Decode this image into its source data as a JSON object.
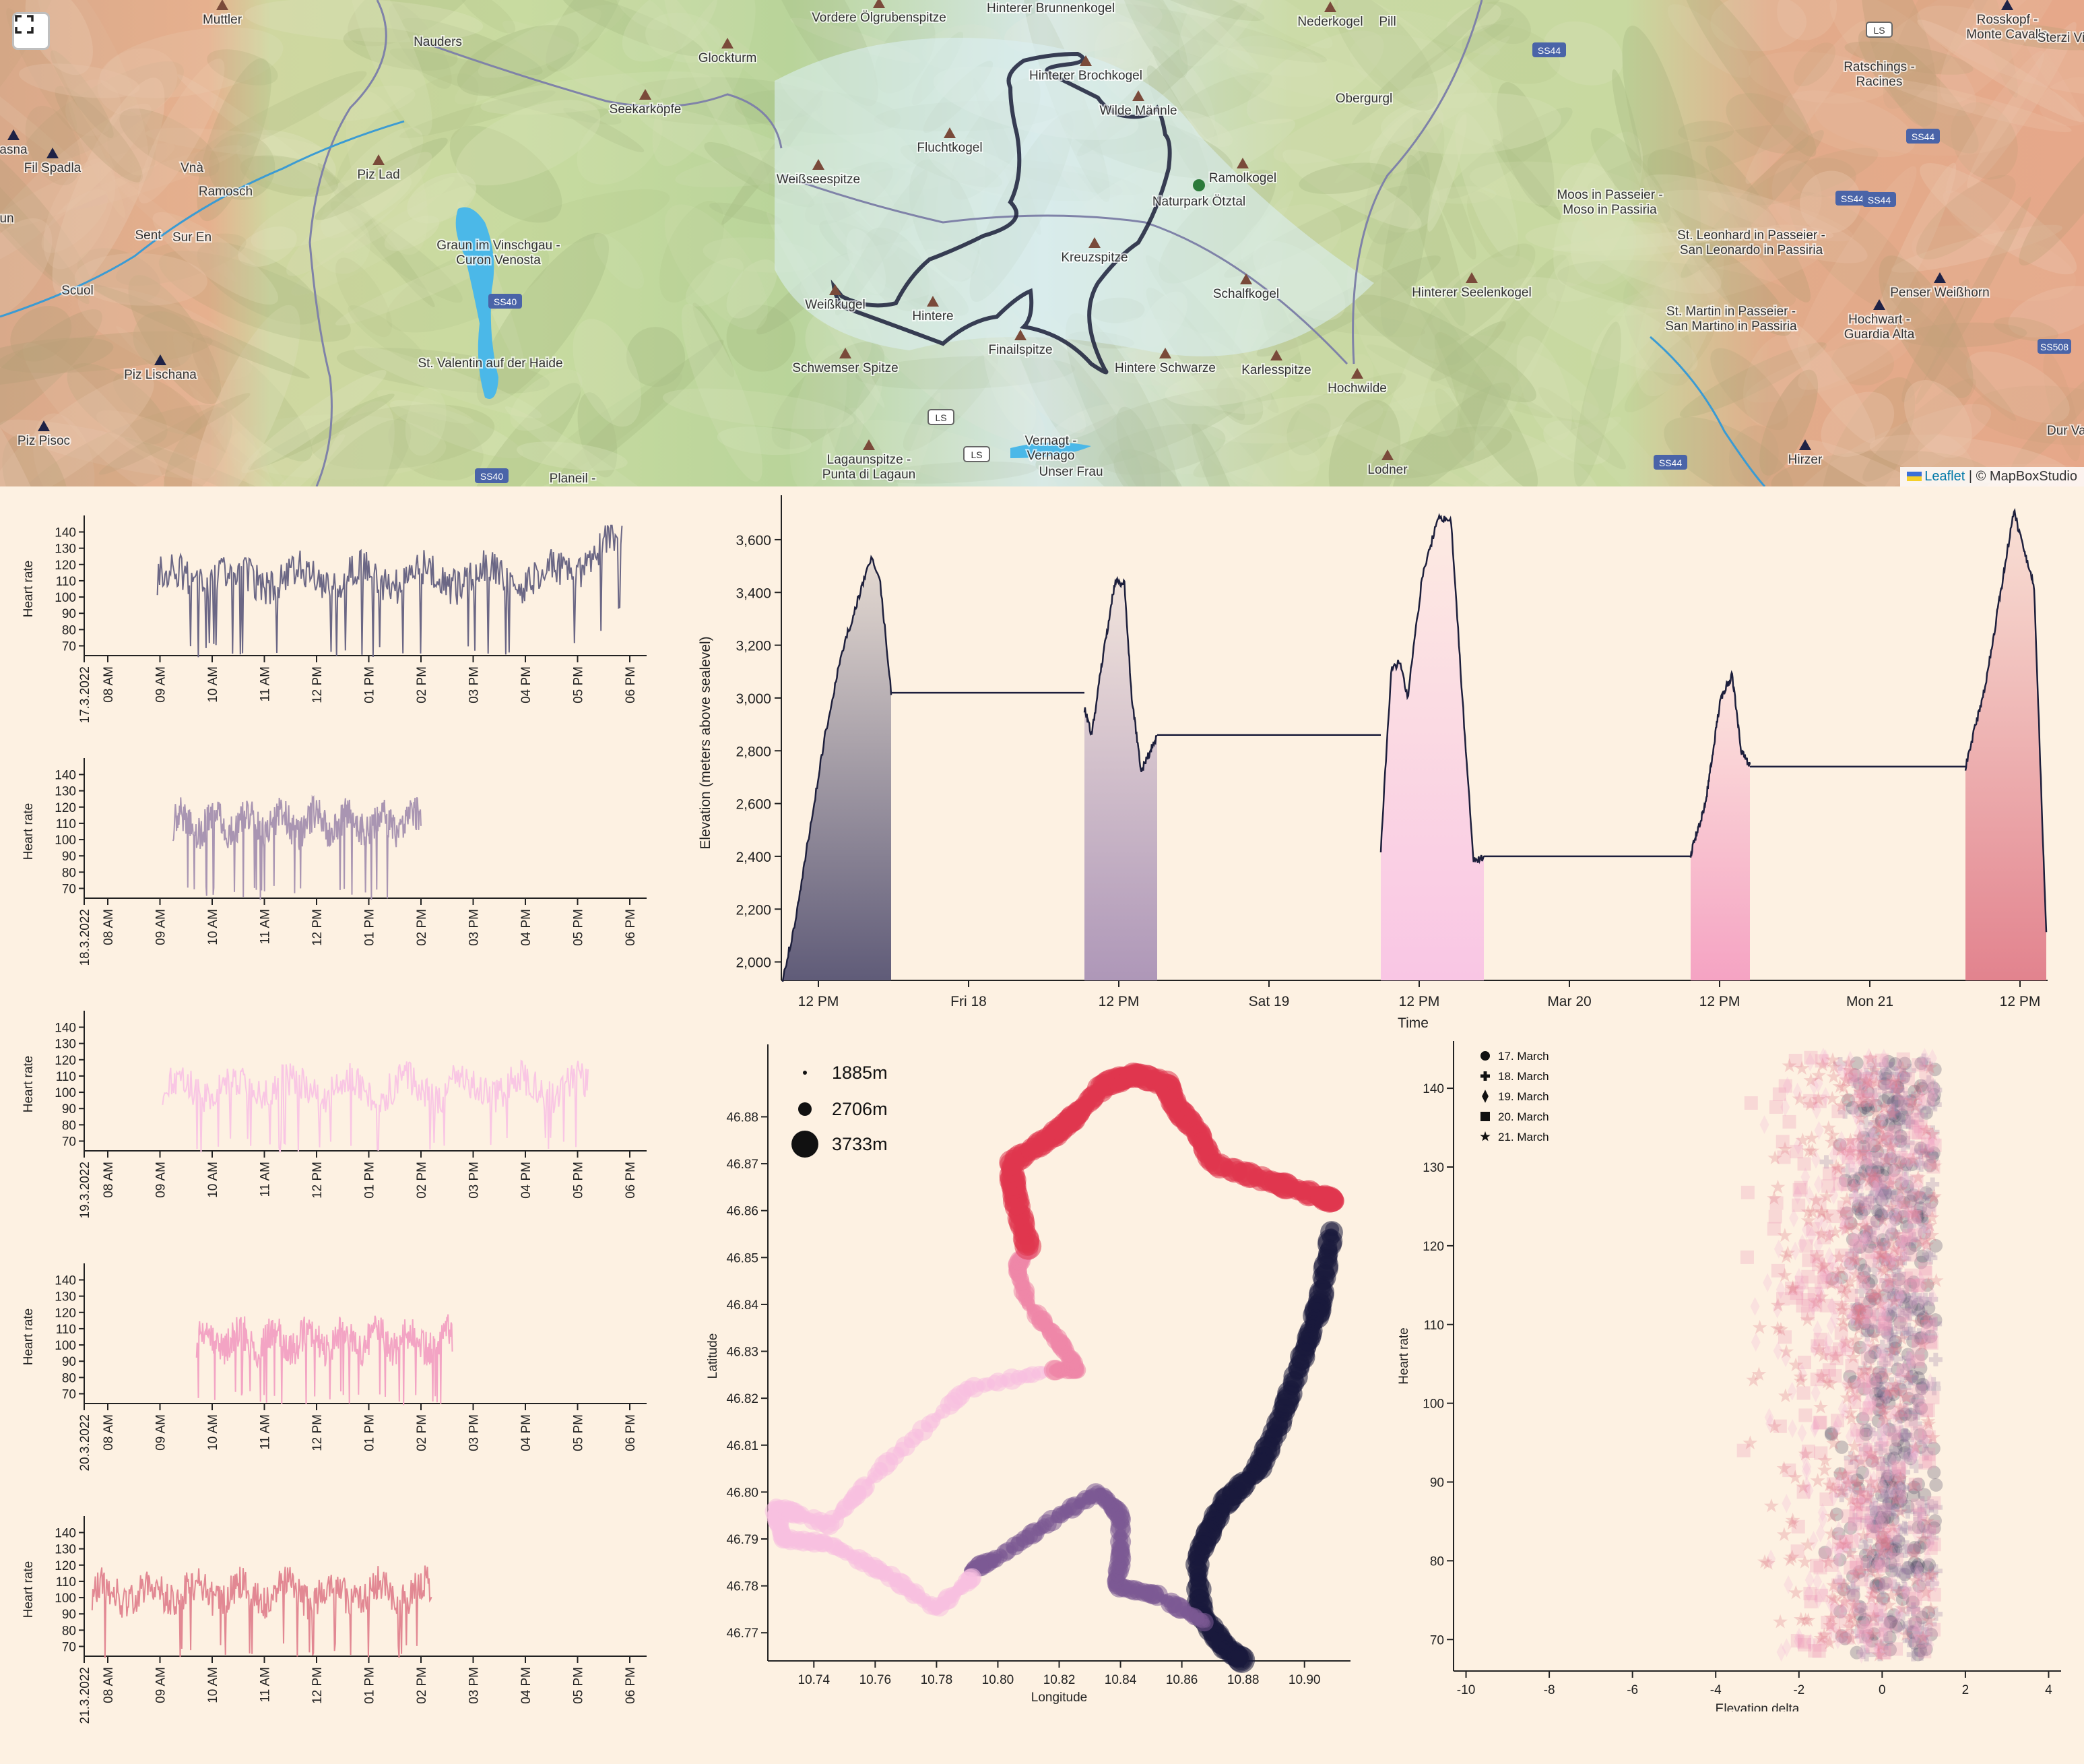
{
  "map": {
    "fullscreen_icon": "fullscreen-icon",
    "attribution": {
      "leaflet": "Leaflet",
      "separator": " | © ",
      "provider": "MapBoxStudio"
    },
    "labels": [
      {
        "name": "Muttler",
        "kind": "peak"
      },
      {
        "name": "Nauders",
        "kind": "town"
      },
      {
        "name": "Glockturm",
        "kind": "peak"
      },
      {
        "name": "Vordere Ölgrubenspitze",
        "kind": "peak"
      },
      {
        "name": "Hinterer Brunnenkogel",
        "kind": "peak"
      },
      {
        "name": "Nederkogel",
        "kind": "peak"
      },
      {
        "name": "Pill",
        "kind": "town"
      },
      {
        "name": "Rosskopf - Monte Cavallo",
        "kind": "peak"
      },
      {
        "name": "Sterzi Vipit",
        "kind": "town"
      },
      {
        "name": "Ratschings - Racines",
        "kind": "town"
      },
      {
        "name": "asna",
        "kind": "peak"
      },
      {
        "name": "Fil Spadla",
        "kind": "peak"
      },
      {
        "name": "Vnà",
        "kind": "town"
      },
      {
        "name": "Ramosch",
        "kind": "town"
      },
      {
        "name": "Piz Lad",
        "kind": "peak"
      },
      {
        "name": "Seekarköpfe",
        "kind": "peak"
      },
      {
        "name": "Hinterer Brochkogel",
        "kind": "peak"
      },
      {
        "name": "Wilde Männle",
        "kind": "peak"
      },
      {
        "name": "Obergurgl",
        "kind": "town"
      },
      {
        "name": "Fluchtkogel",
        "kind": "peak"
      },
      {
        "name": "Weißseespitze",
        "kind": "peak"
      },
      {
        "name": "Ramolkogel",
        "kind": "peak"
      },
      {
        "name": "Naturpark Ötztal",
        "kind": "park"
      },
      {
        "name": "Moos in Passeier - Moso in Passiria",
        "kind": "town"
      },
      {
        "name": "un",
        "kind": "town"
      },
      {
        "name": "Sent",
        "kind": "town"
      },
      {
        "name": "Sur En",
        "kind": "town"
      },
      {
        "name": "Graun im Vinschgau - Curon Venosta",
        "kind": "town"
      },
      {
        "name": "Kreuzspitze",
        "kind": "peak"
      },
      {
        "name": "St. Leonhard in Passeier - San Leonardo in Passiria",
        "kind": "town"
      },
      {
        "name": "Scuol",
        "kind": "town"
      },
      {
        "name": "Weißkugel",
        "kind": "peak"
      },
      {
        "name": "Hintere",
        "kind": "peak"
      },
      {
        "name": "Schalfkogel",
        "kind": "peak"
      },
      {
        "name": "Hinterer Seelenkogel",
        "kind": "peak"
      },
      {
        "name": "Penser Weißhorn",
        "kind": "peak"
      },
      {
        "name": "St. Martin in Passeier - San Martino in Passiria",
        "kind": "town"
      },
      {
        "name": "Hochwart - Guardia Alta",
        "kind": "peak"
      },
      {
        "name": "St. Valentin auf der Haide",
        "kind": "town"
      },
      {
        "name": "Finailspitze",
        "kind": "peak"
      },
      {
        "name": "Hintere Schwarze",
        "kind": "peak"
      },
      {
        "name": "Karlesspitze",
        "kind": "peak"
      },
      {
        "name": "Piz Lischana",
        "kind": "peak"
      },
      {
        "name": "Schwemser Spitze",
        "kind": "peak"
      },
      {
        "name": "Hochwilde",
        "kind": "peak"
      },
      {
        "name": "Lagaunspitze - Punta di Lagaun",
        "kind": "peak"
      },
      {
        "name": "Vernagt - Vernago",
        "kind": "town"
      },
      {
        "name": "Piz Pisoc",
        "kind": "peak"
      },
      {
        "name": "Unser Frau",
        "kind": "town"
      },
      {
        "name": "Lodner",
        "kind": "peak"
      },
      {
        "name": "Hirzer",
        "kind": "peak"
      },
      {
        "name": "Planeil - Planol",
        "kind": "town"
      },
      {
        "name": "Dur Val",
        "kind": "town"
      }
    ],
    "roads": [
      "LS",
      "SS44",
      "SS44",
      "SS44",
      "SS40",
      "SS44",
      "SS508",
      "LS",
      "LS",
      "SS40",
      "SS44"
    ]
  },
  "heart_panels": [
    {
      "date": "17.3.2022",
      "color": "#6b6785"
    },
    {
      "date": "18.3.2022",
      "color": "#a995b2"
    },
    {
      "date": "19.3.2022",
      "color": "#f9c6e4"
    },
    {
      "date": "20.3.2022",
      "color": "#f3a4c4"
    },
    {
      "date": "21.3.2022",
      "color": "#e28893"
    }
  ],
  "heart_axis": {
    "ylabel": "Heart rate",
    "yticks": [
      "140",
      "130",
      "120",
      "110",
      "100",
      "90",
      "80",
      "70"
    ],
    "xticks": [
      "08 AM",
      "09 AM",
      "10 AM",
      "11 AM",
      "12 PM",
      "01 PM",
      "02 PM",
      "03 PM",
      "04 PM",
      "05 PM",
      "06 PM"
    ]
  },
  "chart_data": [
    {
      "type": "area",
      "name": "elevation-profile",
      "xlabel": "Time",
      "ylabel": "Elevation (meters above sealevel)",
      "yticks": [
        "3,600",
        "3,400",
        "3,200",
        "3,000",
        "2,800",
        "2,600",
        "2,400",
        "2,200",
        "2,000"
      ],
      "xticks": [
        "12 PM",
        "Fri 18",
        "12 PM",
        "Sat 19",
        "12 PM",
        "Mar 20",
        "12 PM",
        "Mon 21",
        "12 PM"
      ],
      "ylim": [
        1930,
        3730
      ],
      "days": [
        {
          "color": "#5f5b78",
          "profile": [
            [
              0,
              1940
            ],
            [
              0.1,
              2120
            ],
            [
              0.25,
              2500
            ],
            [
              0.4,
              2880
            ],
            [
              0.55,
              3180
            ],
            [
              0.7,
              3380
            ],
            [
              0.82,
              3540
            ],
            [
              0.9,
              3440
            ],
            [
              1,
              3020
            ]
          ]
        },
        {
          "color": "#ae97b8",
          "profile": [
            [
              0,
              2960
            ],
            [
              0.1,
              2860
            ],
            [
              0.25,
              3150
            ],
            [
              0.42,
              3440
            ],
            [
              0.55,
              3430
            ],
            [
              0.65,
              3000
            ],
            [
              0.78,
              2720
            ],
            [
              1,
              2860
            ]
          ]
        },
        {
          "color": "#f9c6e4",
          "profile": [
            [
              0,
              2430
            ],
            [
              0.1,
              3100
            ],
            [
              0.18,
              3140
            ],
            [
              0.26,
              3000
            ],
            [
              0.4,
              3450
            ],
            [
              0.55,
              3680
            ],
            [
              0.68,
              3680
            ],
            [
              0.8,
              2950
            ],
            [
              0.9,
              2380
            ],
            [
              1,
              2400
            ]
          ]
        },
        {
          "color": "#f5a3c3",
          "profile": [
            [
              0,
              2410
            ],
            [
              0.25,
              2600
            ],
            [
              0.5,
              2990
            ],
            [
              0.7,
              3090
            ],
            [
              0.85,
              2800
            ],
            [
              1,
              2740
            ]
          ]
        },
        {
          "color": "#e2838e",
          "profile": [
            [
              0,
              2740
            ],
            [
              0.25,
              3050
            ],
            [
              0.45,
              3430
            ],
            [
              0.6,
              3710
            ],
            [
              0.72,
              3560
            ],
            [
              0.85,
              3420
            ],
            [
              1,
              2100
            ]
          ]
        }
      ],
      "rest_levels": [
        3020,
        2860,
        2400,
        2740
      ]
    },
    {
      "type": "scatter",
      "name": "gps-track",
      "xlabel": "Longitude",
      "ylabel": "Latitude",
      "xticks": [
        "10.74",
        "10.76",
        "10.78",
        "10.80",
        "10.82",
        "10.84",
        "10.86",
        "10.88",
        "10.90"
      ],
      "yticks": [
        "46.88",
        "46.87",
        "46.86",
        "46.85",
        "46.84",
        "46.83",
        "46.82",
        "46.81",
        "46.80",
        "46.79",
        "46.78",
        "46.77"
      ],
      "xlim": [
        10.725,
        10.915
      ],
      "ylim": [
        46.764,
        46.894
      ],
      "legend": [
        {
          "label": "1885m",
          "r": 3
        },
        {
          "label": "2706m",
          "r": 10
        },
        {
          "label": "3733m",
          "r": 20
        }
      ],
      "segments": [
        {
          "color": "#1a1a3c",
          "path": [
            [
              10.909,
              46.856
            ],
            [
              10.905,
              46.84
            ],
            [
              10.9,
              46.83
            ],
            [
              10.892,
              46.815
            ],
            [
              10.885,
              46.805
            ],
            [
              10.873,
              46.797
            ],
            [
              10.865,
              46.786
            ],
            [
              10.866,
              46.774
            ],
            [
              10.874,
              46.767
            ],
            [
              10.88,
              46.764
            ]
          ]
        },
        {
          "color": "#7c5a93",
          "path": [
            [
              10.868,
              46.772
            ],
            [
              10.852,
              46.778
            ],
            [
              10.838,
              46.78
            ],
            [
              10.84,
              46.785
            ],
            [
              10.84,
              46.795
            ],
            [
              10.833,
              46.8
            ],
            [
              10.82,
              46.795
            ],
            [
              10.8,
              46.786
            ],
            [
              10.79,
              46.783
            ]
          ]
        },
        {
          "color": "#f8c0e0",
          "path": [
            [
              10.792,
              46.782
            ],
            [
              10.78,
              46.775
            ],
            [
              10.765,
              46.782
            ],
            [
              10.745,
              46.789
            ],
            [
              10.73,
              46.79
            ],
            [
              10.727,
              46.797
            ],
            [
              10.745,
              46.793
            ],
            [
              10.762,
              46.805
            ],
            [
              10.79,
              46.822
            ],
            [
              10.818,
              46.826
            ]
          ]
        },
        {
          "color": "#ee86a8",
          "path": [
            [
              10.818,
              46.826
            ],
            [
              10.826,
              46.826
            ],
            [
              10.82,
              46.832
            ],
            [
              10.81,
              46.84
            ],
            [
              10.806,
              46.848
            ],
            [
              10.81,
              46.852
            ]
          ]
        },
        {
          "color": "#e0374f",
          "path": [
            [
              10.81,
              46.852
            ],
            [
              10.806,
              46.862
            ],
            [
              10.804,
              46.87
            ],
            [
              10.818,
              46.876
            ],
            [
              10.825,
              46.88
            ],
            [
              10.835,
              46.887
            ],
            [
              10.845,
              46.889
            ],
            [
              10.855,
              46.887
            ],
            [
              10.858,
              46.882
            ],
            [
              10.865,
              46.877
            ],
            [
              10.87,
              46.87
            ],
            [
              10.89,
              46.866
            ],
            [
              10.905,
              46.863
            ],
            [
              10.91,
              46.862
            ]
          ]
        }
      ]
    },
    {
      "type": "scatter",
      "name": "heart-vs-elevation",
      "xlabel": "Elevation delta",
      "ylabel": "Heart rate",
      "xticks": [
        "-10",
        "-8",
        "-6",
        "-4",
        "-2",
        "0",
        "2",
        "4"
      ],
      "yticks": [
        "140",
        "130",
        "120",
        "110",
        "100",
        "90",
        "80",
        "70"
      ],
      "xlim": [
        -10.3,
        4.3
      ],
      "ylim": [
        66,
        146
      ],
      "legend": [
        {
          "label": "17. March",
          "marker": "circle",
          "color": "#4a4560"
        },
        {
          "label": "18. March",
          "marker": "cross",
          "color": "#9a7fa6"
        },
        {
          "label": "19. March",
          "marker": "diamond",
          "color": "#f3b6d6"
        },
        {
          "label": "20. March",
          "marker": "square",
          "color": "#ee98b8"
        },
        {
          "label": "21. March",
          "marker": "star",
          "color": "#e07886"
        }
      ]
    }
  ]
}
